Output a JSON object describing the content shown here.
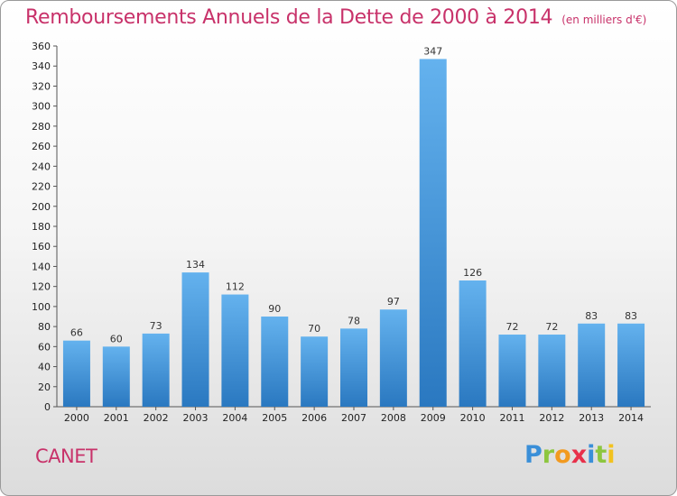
{
  "chart_data": {
    "type": "bar",
    "title": "Remboursements Annuels de la Dette de 2000 à 2014",
    "subtitle": "(en milliers d'€)",
    "categories": [
      "2000",
      "2001",
      "2002",
      "2003",
      "2004",
      "2005",
      "2006",
      "2007",
      "2008",
      "2009",
      "2010",
      "2011",
      "2012",
      "2013",
      "2014"
    ],
    "values": [
      66,
      60,
      73,
      134,
      112,
      90,
      70,
      78,
      97,
      347,
      126,
      72,
      72,
      83,
      83
    ],
    "ylim": [
      0,
      360
    ],
    "yticks": [
      0,
      20,
      40,
      60,
      80,
      100,
      120,
      140,
      160,
      180,
      200,
      220,
      240,
      260,
      280,
      300,
      320,
      340,
      360
    ],
    "grid": false,
    "bar_color": "#4f9fe0",
    "title_color": "#c8326a"
  },
  "footer": {
    "commune": "CANET",
    "logo_letters": [
      {
        "ch": "P",
        "color": "#3a8fd8"
      },
      {
        "ch": "r",
        "color": "#8dc63f"
      },
      {
        "ch": "o",
        "color": "#f29a1f"
      },
      {
        "ch": "x",
        "color": "#e8304a"
      },
      {
        "ch": "i",
        "color": "#3a8fd8"
      },
      {
        "ch": "t",
        "color": "#8dc63f"
      },
      {
        "ch": "i",
        "color": "#f2c21f"
      }
    ]
  }
}
